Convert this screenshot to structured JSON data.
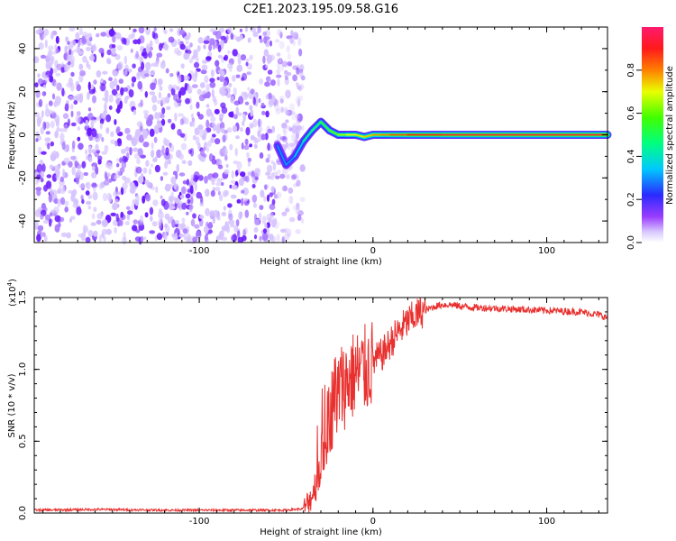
{
  "figure_title": "C2E1.2023.195.09.58.G16",
  "colors": {
    "snr_line": "#e8302e",
    "carrier_band": [
      "#2c2cff",
      "#00ffff",
      "#00ff00",
      "#ffff00",
      "#ff8000",
      "#ff0000"
    ],
    "noise": "#7a2cff"
  },
  "chart_data": [
    {
      "type": "heatmap",
      "title": "",
      "xlabel": "Height of straight line (km)",
      "ylabel": "Frequency (Hz)",
      "xlim": [
        -195,
        135
      ],
      "ylim": [
        -50,
        50
      ],
      "x_ticks": [
        -100,
        0,
        100
      ],
      "x_tick_labels": [
        "-100",
        "0",
        "100"
      ],
      "y_ticks": [
        -40,
        -20,
        0,
        20,
        40
      ],
      "y_tick_labels": [
        "-40",
        "-20",
        "0",
        "20",
        "40"
      ],
      "colorbar": {
        "label": "Normalized spectral amplitude",
        "range": [
          0.0,
          1.0
        ],
        "ticks": [
          0.0,
          0.2,
          0.4,
          0.6,
          0.8
        ],
        "tick_labels": [
          "0.0",
          "0.2",
          "0.4",
          "0.6",
          "0.8"
        ]
      },
      "noise_region_x": [
        -195,
        -48
      ],
      "carrier_track": {
        "x": [
          -55,
          -50,
          -45,
          -40,
          -35,
          -30,
          -25,
          -20,
          -15,
          -10,
          -5,
          0,
          5,
          10,
          20,
          40,
          60,
          80,
          100,
          120,
          135
        ],
        "freq": [
          -5,
          -14,
          -10,
          -3,
          2,
          6,
          2,
          0,
          0,
          0,
          -1,
          0,
          0,
          0,
          0,
          0,
          0,
          0,
          0,
          0,
          0
        ],
        "amplitude": [
          0.3,
          0.3,
          0.35,
          0.45,
          0.5,
          0.55,
          0.6,
          0.65,
          0.7,
          0.72,
          0.75,
          0.78,
          0.8,
          0.85,
          0.9,
          0.95,
          0.95,
          0.95,
          0.95,
          0.95,
          0.95
        ]
      }
    },
    {
      "type": "line",
      "title": "",
      "xlabel": "Height of straight line (km)",
      "ylabel": "SNR (10 * v/v)",
      "y_scale_label": "(x10",
      "y_scale_exp": "4",
      "xlim": [
        -195,
        135
      ],
      "ylim": [
        0,
        1.5
      ],
      "x_ticks": [
        -100,
        0,
        100
      ],
      "x_tick_labels": [
        "-100",
        "0",
        "100"
      ],
      "y_ticks": [
        0.0,
        0.5,
        1.0,
        1.5
      ],
      "y_tick_labels": [
        "0.0",
        "0.5",
        "1.0",
        "1.5"
      ],
      "series": [
        {
          "x": [
            -195,
            -160,
            -120,
            -80,
            -50,
            -40,
            -36,
            -33,
            -30,
            -28,
            -26,
            -24,
            -22,
            -20,
            -18,
            -16,
            -14,
            -12,
            -10,
            -8,
            -6,
            -4,
            -2,
            0,
            2,
            5,
            8,
            12,
            16,
            20,
            24,
            28,
            32,
            36,
            40,
            45,
            50,
            60,
            80,
            100,
            120,
            130,
            135
          ],
          "y": [
            0.02,
            0.025,
            0.02,
            0.02,
            0.02,
            0.03,
            0.1,
            0.2,
            0.35,
            0.5,
            0.62,
            0.72,
            0.8,
            0.85,
            0.88,
            0.9,
            0.93,
            0.95,
            0.97,
            0.98,
            0.99,
            1.0,
            1.02,
            1.05,
            1.07,
            1.1,
            1.15,
            1.22,
            1.28,
            1.33,
            1.37,
            1.4,
            1.42,
            1.44,
            1.45,
            1.45,
            1.44,
            1.43,
            1.42,
            1.41,
            1.4,
            1.38,
            1.36
          ]
        }
      ]
    }
  ]
}
